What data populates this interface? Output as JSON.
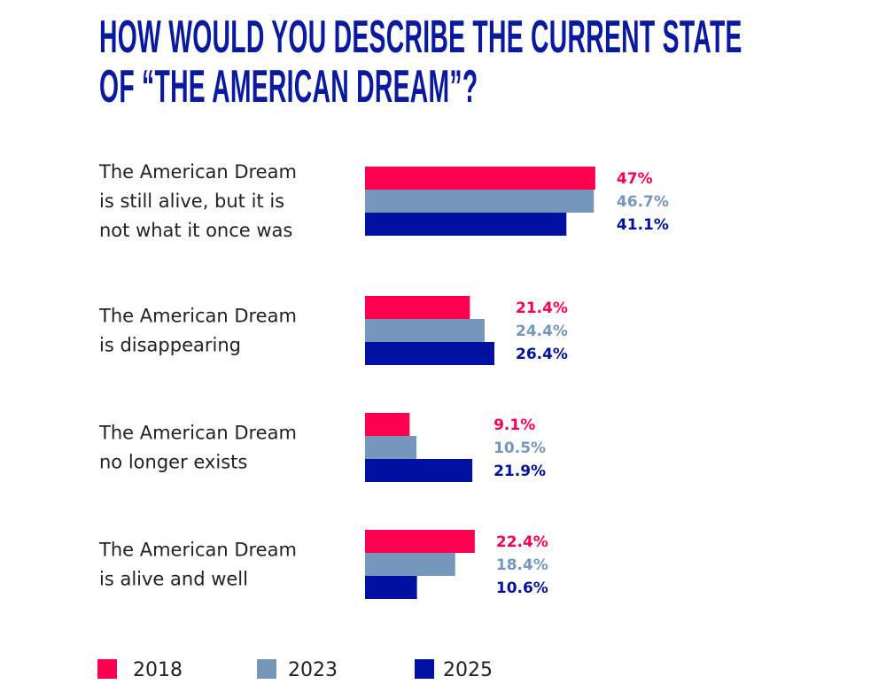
{
  "chart_data": {
    "type": "bar",
    "orientation": "horizontal",
    "title": "HOW WOULD YOU DESCRIBE THE CURRENT STATE OF “THE AMERICAN DREAM”?",
    "title_lines": [
      "HOW WOULD YOU DESCRIBE THE CURRENT STATE",
      "OF “THE AMERICAN DREAM”?"
    ],
    "categories": [
      [
        "The American Dream",
        "is still alive, but it is",
        "not what it once was"
      ],
      [
        "The American Dream",
        "is disappearing"
      ],
      [
        "The American Dream",
        "no longer exists"
      ],
      [
        "The American Dream",
        "is alive and well"
      ]
    ],
    "series": [
      {
        "name": "2018",
        "color": "#ff0050",
        "values": [
          47,
          21.4,
          9.1,
          22.4
        ],
        "labels": [
          "47%",
          "21.4%",
          "9.1%",
          "22.4%"
        ]
      },
      {
        "name": "2023",
        "color": "#7597bb",
        "values": [
          46.7,
          24.4,
          10.5,
          18.4
        ],
        "labels": [
          "46.7%",
          "24.4%",
          "10.5%",
          "18.4%"
        ]
      },
      {
        "name": "2025",
        "color": "#0010a0",
        "values": [
          41.1,
          26.4,
          21.9,
          10.6
        ],
        "labels": [
          "41.1%",
          "26.4%",
          "21.9%",
          "10.6%"
        ]
      }
    ],
    "unit": "%",
    "grid": false,
    "legend_placement": "bottom-left"
  }
}
